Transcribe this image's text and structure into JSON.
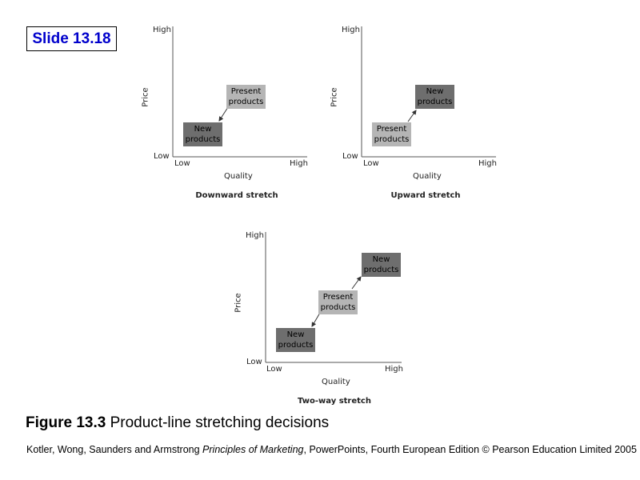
{
  "slide_label": "Slide 13.18",
  "panels": [
    {
      "caption": "Downward stretch",
      "y_axis": {
        "label": "Price",
        "high": "High",
        "low": "Low"
      },
      "x_axis": {
        "label": "Quality",
        "low": "Low",
        "high": "High"
      },
      "boxes": [
        {
          "line1": "Present",
          "line2": "products",
          "shade": "light"
        },
        {
          "line1": "New",
          "line2": "products",
          "shade": "dark"
        }
      ]
    },
    {
      "caption": "Upward stretch",
      "y_axis": {
        "label": "Price",
        "high": "High",
        "low": "Low"
      },
      "x_axis": {
        "label": "Quality",
        "low": "Low",
        "high": "High"
      },
      "boxes": [
        {
          "line1": "New",
          "line2": "products",
          "shade": "dark"
        },
        {
          "line1": "Present",
          "line2": "products",
          "shade": "light"
        }
      ]
    },
    {
      "caption": "Two-way stretch",
      "y_axis": {
        "label": "Price",
        "high": "High",
        "low": "Low"
      },
      "x_axis": {
        "label": "Quality",
        "low": "Low",
        "high": "High"
      },
      "boxes": [
        {
          "line1": "New",
          "line2": "products",
          "shade": "dark"
        },
        {
          "line1": "Present",
          "line2": "products",
          "shade": "light"
        },
        {
          "line1": "New",
          "line2": "products",
          "shade": "dark"
        }
      ]
    }
  ],
  "figure": {
    "number": "Figure 13.3",
    "title": "Product-line stretching decisions"
  },
  "footer": {
    "before": "Kotler, Wong, Saunders and Armstrong ",
    "book": "Principles of Marketing",
    "after": ", PowerPoints, Fourth European Edition © Pearson Education Limited 2005"
  },
  "colors": {
    "slide_label": "#0000cc",
    "dark_box": "#6e6e6e",
    "light_box": "#b5b5b5"
  }
}
